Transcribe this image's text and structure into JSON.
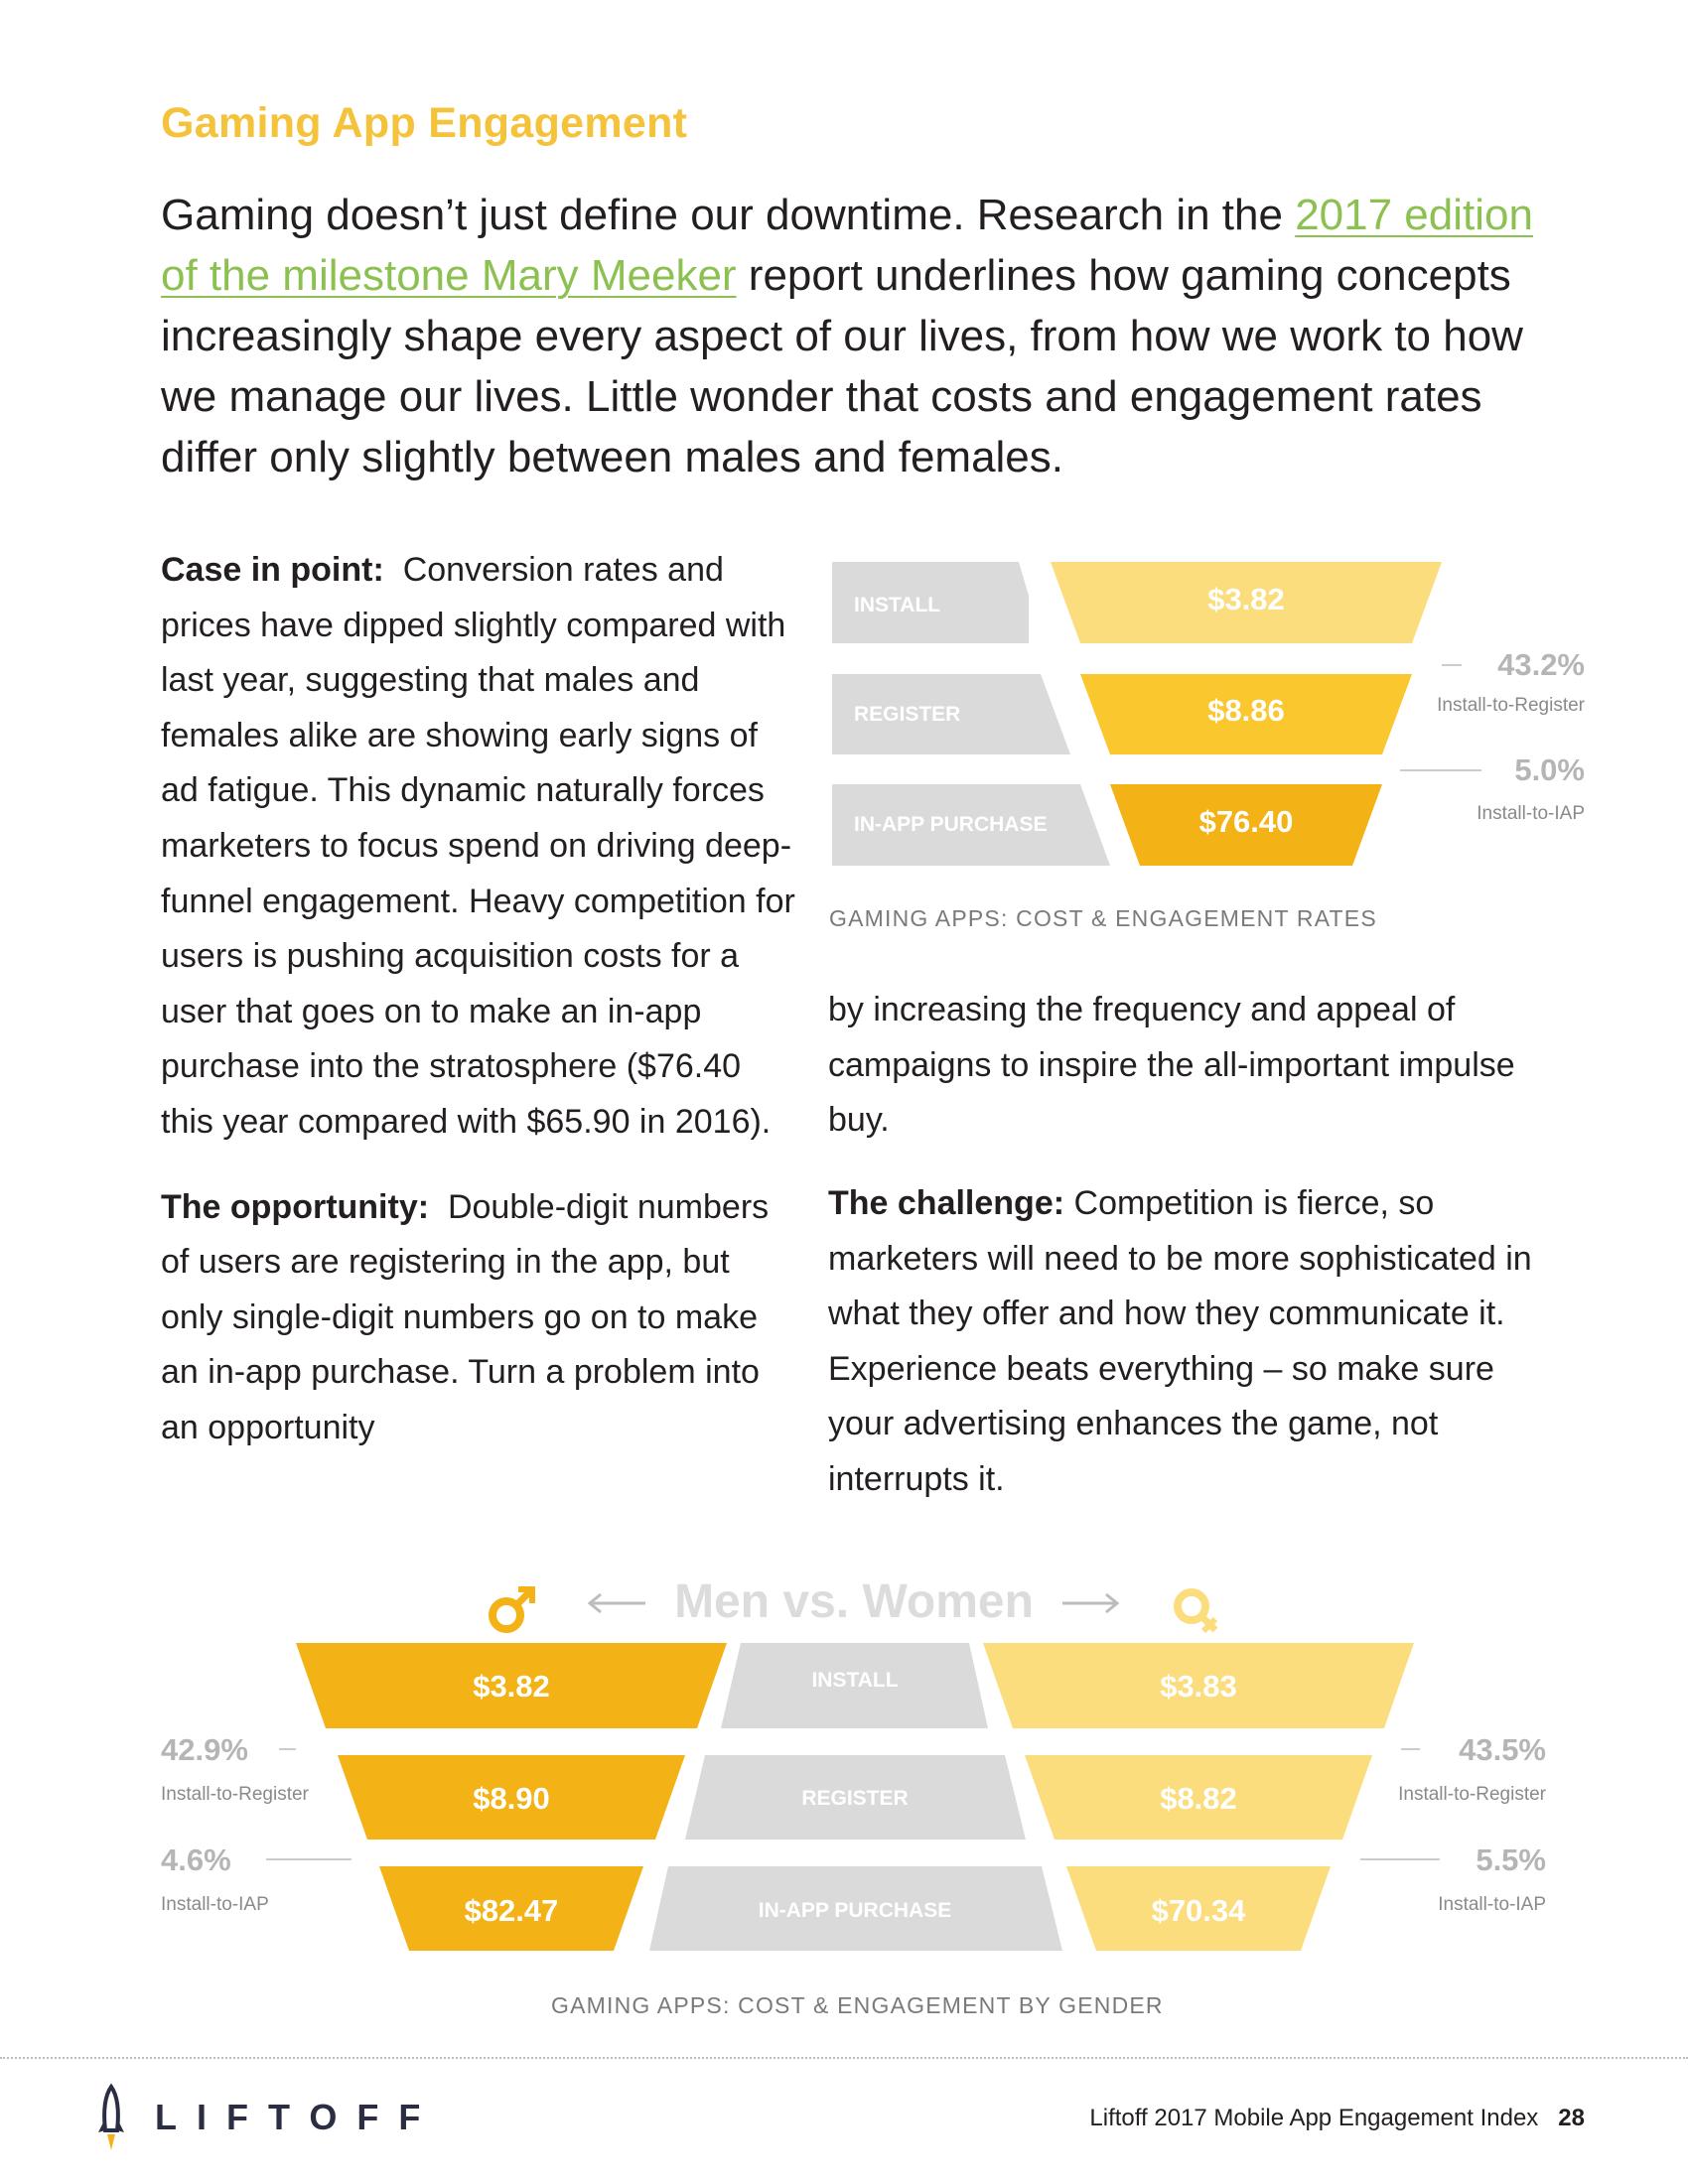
{
  "section_title": "Gaming App Engagement",
  "intro": {
    "before_link": "Gaming doesn’t just define our downtime. Research in the ",
    "link_text": "2017 edition of the milestone Mary Meeker",
    "after_link": " report underlines how gaming concepts increasingly shape every aspect of our lives, from how we work to how we manage our lives. Little wonder that costs and engagement rates differ only slightly between males and females."
  },
  "left_column": {
    "case_label": "Case in point:",
    "case_text": "Conversion rates and prices have dipped slightly compared with last year, suggesting that males and females alike are showing early signs of ad fatigue. This dynamic naturally forces marketers to focus spend on driving deep-funnel engagement. Heavy competition for users is pushing acquisition costs for a user that goes on to make an in-app purchase into the stratosphere ($76.40 this year compared with $65.90 in 2016).",
    "opportunity_label": "The opportunity:",
    "opportunity_text": "Double-digit numbers of users are registering in the app, but only single-digit numbers go on to make an in-app purchase. Turn a problem into an opportunity"
  },
  "right_column": {
    "continuation": "by increasing the frequency and appeal of campaigns to inspire the all-important impulse buy.",
    "challenge_label": "The challenge:",
    "challenge_text": "Competition is fierce, so marketers will need to be more sophisticated in what they offer and how they communicate it. Experience beats everything – so make sure your advertising enhances the game, not interrupts it."
  },
  "chart_data": [
    {
      "type": "funnel",
      "title": "GAMING APPS: COST & ENGAGEMENT RATES",
      "stages": [
        "INSTALL",
        "REGISTER",
        "IN-APP PURCHASE"
      ],
      "values": [
        "$3.82",
        "$8.86",
        "$76.40"
      ],
      "costs": [
        3.82,
        8.86,
        76.4
      ],
      "rates": [
        {
          "value": "43.2%",
          "label": "Install-to-Register"
        },
        {
          "value": "5.0%",
          "label": "Install-to-IAP"
        }
      ],
      "colors": [
        "#fcdd7d",
        "#fac72f",
        "#f3b216"
      ]
    },
    {
      "type": "funnel",
      "title": "GAMING APPS: COST & ENGAGEMENT BY GENDER",
      "heading": "Men vs. Women",
      "stages": [
        "INSTALL",
        "REGISTER",
        "IN-APP PURCHASE"
      ],
      "series": [
        {
          "name": "Men",
          "values": [
            "$3.82",
            "$8.90",
            "$82.47"
          ],
          "costs": [
            3.82,
            8.9,
            82.47
          ],
          "rates": [
            {
              "value": "42.9%",
              "label": "Install-to-Register"
            },
            {
              "value": "4.6%",
              "label": "Install-to-IAP"
            }
          ],
          "color": "#f3b216"
        },
        {
          "name": "Women",
          "values": [
            "$3.83",
            "$8.82",
            "$70.34"
          ],
          "costs": [
            3.83,
            8.82,
            70.34
          ],
          "rates": [
            {
              "value": "43.5%",
              "label": "Install-to-Register"
            },
            {
              "value": "5.5%",
              "label": "Install-to-IAP"
            }
          ],
          "color": "#fcdd7d"
        }
      ]
    }
  ],
  "footer": {
    "logo_text": "LIFTOFF",
    "report_name": "Liftoff 2017 Mobile App Engagement Index",
    "page_number": "28"
  }
}
